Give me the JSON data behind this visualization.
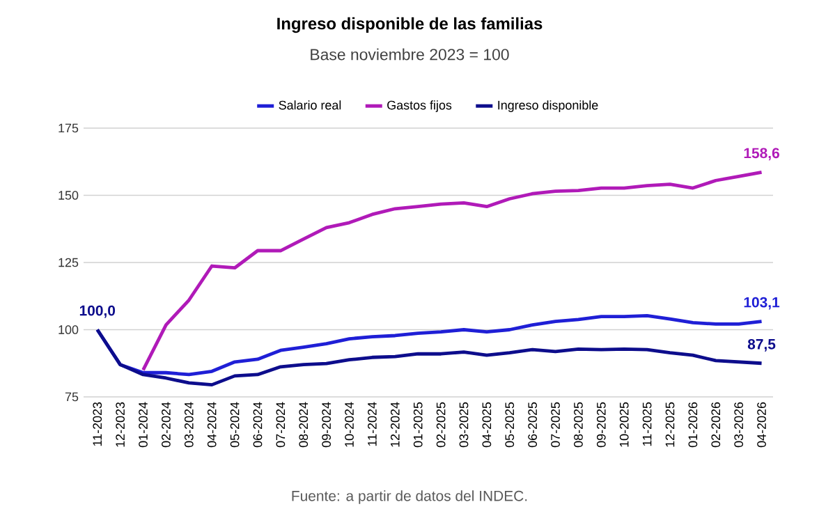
{
  "chart_data": {
    "type": "line",
    "title": "Ingreso disponible de las familias",
    "subtitle": "Base noviembre 2023 = 100",
    "categories": [
      "11-2023",
      "12-2023",
      "01-2024",
      "02-2024",
      "03-2024",
      "04-2024",
      "05-2024",
      "06-2024",
      "07-2024",
      "08-2024",
      "09-2024",
      "10-2024",
      "11-2024",
      "12-2024",
      "01-2025",
      "02-2025",
      "03-2025",
      "04-2025",
      "05-2025",
      "06-2025",
      "07-2025",
      "08-2025",
      "09-2025",
      "10-2025",
      "11-2025",
      "12-2025",
      "01-2026",
      "02-2026",
      "03-2026",
      "04-2026"
    ],
    "series": [
      {
        "name": "Salario real",
        "color": "#1f1fd6",
        "values": [
          100,
          87,
          84,
          84,
          83.3,
          84.5,
          88,
          89,
          92.3,
          93.5,
          94.8,
          96.6,
          97.4,
          97.8,
          98.7,
          99.2,
          100,
          99.2,
          100,
          101.8,
          103.1,
          103.8,
          104.9,
          104.9,
          105.2,
          104,
          102.6,
          102.1,
          102.1,
          103.1
        ],
        "value_labels": [
          null,
          null,
          null,
          null,
          null,
          null,
          null,
          null,
          null,
          null,
          null,
          null,
          null,
          null,
          null,
          null,
          null,
          null,
          null,
          null,
          null,
          null,
          null,
          null,
          null,
          null,
          null,
          null,
          null,
          "103,1"
        ]
      },
      {
        "name": "Gastos fijos",
        "color": "#b01ab8",
        "values": [
          null,
          null,
          85,
          101.8,
          111,
          123.7,
          123,
          129.4,
          129.4,
          133.7,
          138,
          139.8,
          142.9,
          145,
          145.8,
          146.7,
          147.2,
          145.8,
          148.7,
          150.6,
          151.5,
          151.8,
          152.7,
          152.7,
          153.6,
          154.1,
          152.7,
          155.5,
          157,
          158.6
        ],
        "value_labels": [
          null,
          null,
          null,
          null,
          null,
          null,
          null,
          null,
          null,
          null,
          null,
          null,
          null,
          null,
          null,
          null,
          null,
          null,
          null,
          null,
          null,
          null,
          null,
          null,
          null,
          null,
          null,
          null,
          null,
          "158,6"
        ]
      },
      {
        "name": "Ingreso disponible",
        "color": "#0d0d8c",
        "values": [
          100,
          87,
          83.3,
          82,
          80.2,
          79.5,
          82.8,
          83.3,
          86.2,
          87,
          87.4,
          88.8,
          89.7,
          90,
          91,
          91,
          91.7,
          90.5,
          91.4,
          92.6,
          91.9,
          92.8,
          92.6,
          92.8,
          92.6,
          91.4,
          90.5,
          88.5,
          88,
          87.5
        ],
        "value_labels": [
          "100,0",
          null,
          null,
          null,
          null,
          null,
          null,
          null,
          null,
          null,
          null,
          null,
          null,
          null,
          null,
          null,
          null,
          null,
          null,
          null,
          null,
          null,
          null,
          null,
          null,
          null,
          null,
          null,
          null,
          "87,5"
        ]
      }
    ],
    "ylim": [
      75,
      175
    ],
    "yticks": [
      75,
      100,
      125,
      150,
      175
    ],
    "grid": "y",
    "legend": "top",
    "marker": "none",
    "line_style": "solid",
    "annotations": [
      "Fuente: a partir de datos del INDEC."
    ]
  }
}
